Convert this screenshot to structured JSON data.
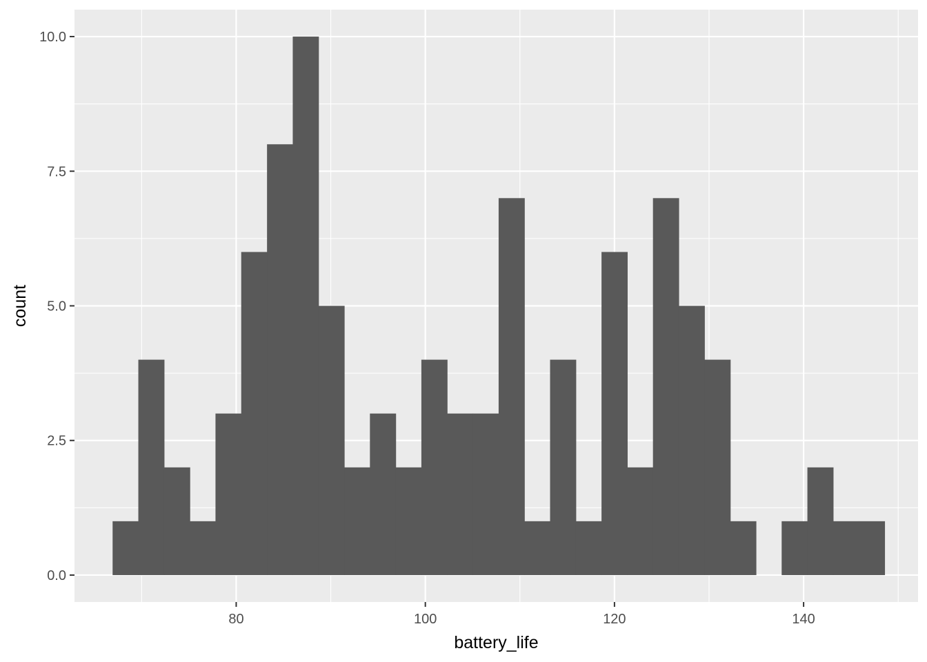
{
  "chart_data": {
    "type": "bar",
    "subtype": "histogram",
    "title": "",
    "xlabel": "battery_life",
    "ylabel": "count",
    "xlim": [
      62.9,
      152.1
    ],
    "ylim": [
      -0.5,
      10.5
    ],
    "x_ticks": [
      80,
      100,
      120,
      140
    ],
    "x_tick_labels": [
      "80",
      "100",
      "120",
      "140"
    ],
    "y_ticks": [
      0,
      2.5,
      5,
      7.5,
      10
    ],
    "y_tick_labels": [
      "0.0",
      "2.5",
      "5.0",
      "7.5",
      "10.0"
    ],
    "bins": [
      {
        "x0": 66.93,
        "x1": 69.65,
        "count": 1
      },
      {
        "x0": 69.65,
        "x1": 72.37,
        "count": 4
      },
      {
        "x0": 72.37,
        "x1": 75.09,
        "count": 2
      },
      {
        "x0": 75.09,
        "x1": 77.81,
        "count": 1
      },
      {
        "x0": 77.81,
        "x1": 80.53,
        "count": 3
      },
      {
        "x0": 80.53,
        "x1": 83.26,
        "count": 6
      },
      {
        "x0": 83.26,
        "x1": 85.98,
        "count": 8
      },
      {
        "x0": 85.98,
        "x1": 88.7,
        "count": 10
      },
      {
        "x0": 88.7,
        "x1": 91.42,
        "count": 5
      },
      {
        "x0": 91.42,
        "x1": 94.14,
        "count": 2
      },
      {
        "x0": 94.14,
        "x1": 96.86,
        "count": 3
      },
      {
        "x0": 96.86,
        "x1": 99.58,
        "count": 2
      },
      {
        "x0": 99.58,
        "x1": 102.3,
        "count": 4
      },
      {
        "x0": 102.3,
        "x1": 105.02,
        "count": 3
      },
      {
        "x0": 105.02,
        "x1": 107.75,
        "count": 3
      },
      {
        "x0": 107.75,
        "x1": 110.47,
        "count": 7
      },
      {
        "x0": 110.47,
        "x1": 113.19,
        "count": 1
      },
      {
        "x0": 113.19,
        "x1": 115.91,
        "count": 4
      },
      {
        "x0": 115.91,
        "x1": 118.63,
        "count": 1
      },
      {
        "x0": 118.63,
        "x1": 121.35,
        "count": 6
      },
      {
        "x0": 121.35,
        "x1": 124.07,
        "count": 2
      },
      {
        "x0": 124.07,
        "x1": 126.79,
        "count": 7
      },
      {
        "x0": 126.79,
        "x1": 129.51,
        "count": 5
      },
      {
        "x0": 129.51,
        "x1": 132.24,
        "count": 4
      },
      {
        "x0": 132.24,
        "x1": 134.96,
        "count": 1
      },
      {
        "x0": 134.96,
        "x1": 137.68,
        "count": 0
      },
      {
        "x0": 137.68,
        "x1": 140.4,
        "count": 1
      },
      {
        "x0": 140.4,
        "x1": 143.12,
        "count": 2
      },
      {
        "x0": 143.12,
        "x1": 145.84,
        "count": 1
      },
      {
        "x0": 145.84,
        "x1": 148.56,
        "count": 1
      }
    ],
    "grid": true,
    "legend": "none",
    "colors": {
      "panel": "#ebebeb",
      "grid": "#ffffff",
      "bar": "#595959",
      "tick_text": "#4d4d4d",
      "tick_mark": "#333333",
      "axis_title": "#000000"
    }
  }
}
